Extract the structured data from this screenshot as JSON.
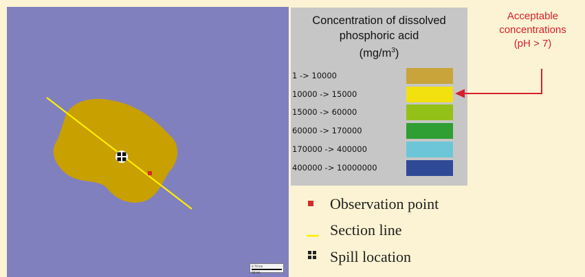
{
  "map": {
    "colors": {
      "background": "#8080be",
      "plume": "#c8a000",
      "section_line": "#ffee00",
      "observation_point": "#d62a2a"
    },
    "spill_symbol": "spill-location-icon",
    "scale_bar": {
      "top_text": "0.74 km",
      "bottom_text": "28 km"
    }
  },
  "legend": {
    "title_line1": "Concentration of  dissolved",
    "title_line2": "phosphoric acid",
    "title_unit": "(mg/m",
    "title_unit_exp": "3",
    "title_unit_close": ")",
    "ranges": [
      {
        "label": "1 -> 10000",
        "color": "#c8a43a"
      },
      {
        "label": "10000 -> 15000",
        "color": "#f2e10f"
      },
      {
        "label": "15000 -> 60000",
        "color": "#93c118"
      },
      {
        "label": "60000 -> 170000",
        "color": "#2f9e33"
      },
      {
        "label": "170000 -> 400000",
        "color": "#6cc6d8"
      },
      {
        "label": "400000 -> 10000000",
        "color": "#2e4a96"
      }
    ]
  },
  "callout": {
    "line1": "Acceptable",
    "line2": "concentrations",
    "line3": "(pH > 7)",
    "color": "#d61f2c",
    "points_to": "10000 -> 15000"
  },
  "key": {
    "observation_point": "Observation point",
    "section_line": "Section line",
    "spill_location": "Spill location"
  }
}
